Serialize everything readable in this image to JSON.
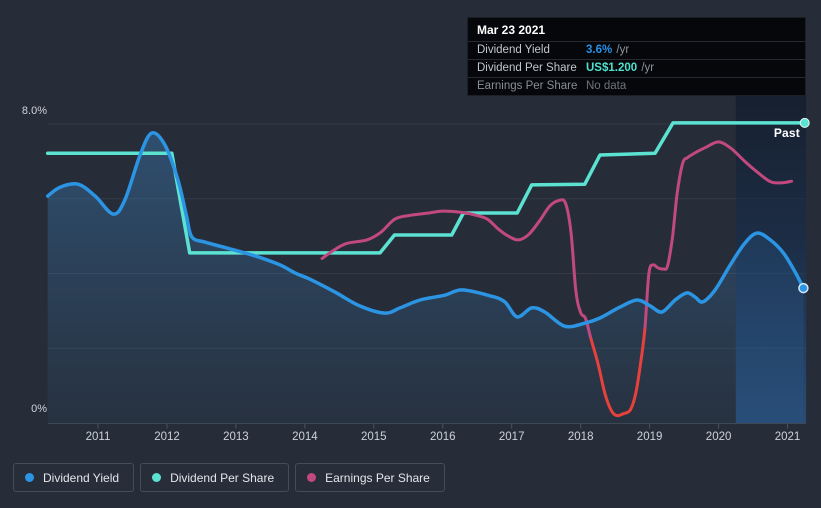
{
  "colors": {
    "background": "#262d39",
    "grid": "#333b49",
    "axis_line": "#3f4755",
    "tick": "#4b5360",
    "tooltip_background": "#05070a",
    "dividend_yield": "#2B95E4",
    "dividend_per_share": "#5CE2D1",
    "earnings_per_share": "#C2497F",
    "earnings_negative": "#E8413C"
  },
  "tooltip": {
    "date": "Mar 23 2021",
    "rows": [
      {
        "label": "Dividend Yield",
        "value": "3.6%",
        "suffix": " /yr",
        "value_color": "#2790e8",
        "muted": false
      },
      {
        "label": "Dividend Per Share",
        "value": "US$1.200",
        "suffix": " /yr",
        "value_color": "#4fe0cf",
        "muted": false
      },
      {
        "label": "Earnings Per Share",
        "value": "No data",
        "suffix": "",
        "value_color": "#70757c",
        "muted": true
      }
    ]
  },
  "legend": [
    {
      "label": "Dividend Yield",
      "color": "#2B95E4"
    },
    {
      "label": "Dividend Per Share",
      "color": "#5CE2D1"
    },
    {
      "label": "Earnings Per Share",
      "color": "#C2497F"
    }
  ],
  "chart_data": {
    "type": "line",
    "title": "Dividend history chart",
    "x_axis": {
      "ticks": [
        "2011",
        "2012",
        "2013",
        "2014",
        "2015",
        "2016",
        "2017",
        "2018",
        "2019",
        "2020",
        "2021"
      ],
      "domain": [
        2010.27,
        2021.27
      ]
    },
    "y_axis": {
      "unit": "percent (shared visual axis)",
      "domain": [
        0,
        8
      ],
      "gridlines_pct": [
        2,
        4,
        6,
        8
      ],
      "labels": {
        "top": "8.0%",
        "bottom": "0%"
      }
    },
    "past_band": {
      "from": 2020.25,
      "to": 2021.27,
      "label": "Past"
    },
    "series": [
      {
        "name": "Dividend Yield",
        "color": "#2B95E4",
        "style": "smooth",
        "area_fill": true,
        "end_marker": true,
        "points": [
          [
            2010.27,
            6.07
          ],
          [
            2010.45,
            6.31
          ],
          [
            2010.71,
            6.39
          ],
          [
            2010.96,
            6.07
          ],
          [
            2011.22,
            5.59
          ],
          [
            2011.39,
            5.97
          ],
          [
            2011.61,
            7.17
          ],
          [
            2011.78,
            7.76
          ],
          [
            2011.97,
            7.44
          ],
          [
            2012.16,
            6.5
          ],
          [
            2012.28,
            5.56
          ],
          [
            2012.36,
            4.98
          ],
          [
            2012.55,
            4.84
          ],
          [
            2012.91,
            4.66
          ],
          [
            2013.28,
            4.47
          ],
          [
            2013.64,
            4.23
          ],
          [
            2013.86,
            4.01
          ],
          [
            2014.07,
            3.85
          ],
          [
            2014.44,
            3.5
          ],
          [
            2014.8,
            3.13
          ],
          [
            2015.16,
            2.94
          ],
          [
            2015.38,
            3.08
          ],
          [
            2015.67,
            3.29
          ],
          [
            2016.03,
            3.42
          ],
          [
            2016.28,
            3.56
          ],
          [
            2016.69,
            3.4
          ],
          [
            2016.9,
            3.24
          ],
          [
            2017.08,
            2.84
          ],
          [
            2017.29,
            3.08
          ],
          [
            2017.48,
            2.97
          ],
          [
            2017.77,
            2.59
          ],
          [
            2018.06,
            2.67
          ],
          [
            2018.28,
            2.81
          ],
          [
            2018.57,
            3.1
          ],
          [
            2018.82,
            3.29
          ],
          [
            2019.01,
            3.13
          ],
          [
            2019.18,
            2.97
          ],
          [
            2019.37,
            3.29
          ],
          [
            2019.54,
            3.48
          ],
          [
            2019.66,
            3.37
          ],
          [
            2019.77,
            3.24
          ],
          [
            2019.95,
            3.56
          ],
          [
            2020.17,
            4.23
          ],
          [
            2020.38,
            4.81
          ],
          [
            2020.56,
            5.08
          ],
          [
            2020.75,
            4.9
          ],
          [
            2020.94,
            4.55
          ],
          [
            2021.11,
            4.04
          ],
          [
            2021.23,
            3.61
          ]
        ]
      },
      {
        "name": "Dividend Per Share",
        "color": "#5CE2D1",
        "style": "step",
        "area_fill": false,
        "end_marker": true,
        "points": [
          [
            2010.27,
            7.22
          ],
          [
            2012.07,
            7.22
          ],
          [
            2012.33,
            4.55
          ],
          [
            2015.09,
            4.55
          ],
          [
            2015.3,
            5.03
          ],
          [
            2016.13,
            5.03
          ],
          [
            2016.3,
            5.62
          ],
          [
            2017.08,
            5.62
          ],
          [
            2017.29,
            6.37
          ],
          [
            2018.06,
            6.39
          ],
          [
            2018.28,
            7.17
          ],
          [
            2019.08,
            7.22
          ],
          [
            2019.34,
            8.03
          ],
          [
            2021.25,
            8.03
          ]
        ]
      },
      {
        "name": "Earnings Per Share",
        "color": "#C2497F",
        "style": "smooth",
        "area_fill": false,
        "end_marker": false,
        "negative_color": "#E8413C",
        "negative_range": [
          2018.15,
          2018.93
        ],
        "points": [
          [
            2014.25,
            4.4
          ],
          [
            2014.4,
            4.6
          ],
          [
            2014.6,
            4.8
          ],
          [
            2014.9,
            4.9
          ],
          [
            2015.1,
            5.1
          ],
          [
            2015.3,
            5.45
          ],
          [
            2015.5,
            5.55
          ],
          [
            2015.8,
            5.62
          ],
          [
            2016.0,
            5.67
          ],
          [
            2016.3,
            5.63
          ],
          [
            2016.5,
            5.55
          ],
          [
            2016.65,
            5.45
          ],
          [
            2016.8,
            5.2
          ],
          [
            2016.95,
            5.0
          ],
          [
            2017.1,
            4.9
          ],
          [
            2017.25,
            5.05
          ],
          [
            2017.4,
            5.4
          ],
          [
            2017.55,
            5.8
          ],
          [
            2017.68,
            5.95
          ],
          [
            2017.78,
            5.88
          ],
          [
            2017.86,
            5.1
          ],
          [
            2017.93,
            3.55
          ],
          [
            2018.0,
            2.95
          ],
          [
            2018.07,
            2.8
          ],
          [
            2018.15,
            2.25
          ],
          [
            2018.25,
            1.6
          ],
          [
            2018.35,
            0.8
          ],
          [
            2018.44,
            0.35
          ],
          [
            2018.52,
            0.2
          ],
          [
            2018.62,
            0.25
          ],
          [
            2018.72,
            0.35
          ],
          [
            2018.8,
            0.8
          ],
          [
            2018.87,
            1.6
          ],
          [
            2018.93,
            2.5
          ],
          [
            2018.99,
            4.0
          ],
          [
            2019.05,
            4.23
          ],
          [
            2019.12,
            4.15
          ],
          [
            2019.2,
            4.12
          ],
          [
            2019.26,
            4.2
          ],
          [
            2019.33,
            4.95
          ],
          [
            2019.4,
            6.15
          ],
          [
            2019.48,
            6.95
          ],
          [
            2019.55,
            7.1
          ],
          [
            2019.68,
            7.25
          ],
          [
            2019.82,
            7.38
          ],
          [
            2020.0,
            7.52
          ],
          [
            2020.18,
            7.35
          ],
          [
            2020.38,
            7.0
          ],
          [
            2020.57,
            6.7
          ],
          [
            2020.76,
            6.45
          ],
          [
            2020.93,
            6.43
          ],
          [
            2021.06,
            6.47
          ]
        ]
      }
    ]
  }
}
